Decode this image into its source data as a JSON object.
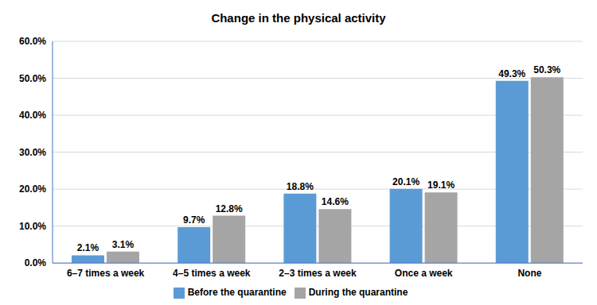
{
  "chart_data": {
    "type": "bar",
    "title": "Change in the physical activity",
    "categories": [
      "6–7 times a week",
      "4–5 times a week",
      "2–3 times a week",
      "Once a week",
      "None"
    ],
    "series": [
      {
        "name": "Before the quarantine",
        "color": "#5b9bd5",
        "values": [
          2.1,
          9.7,
          18.8,
          20.1,
          49.3
        ],
        "value_labels": [
          "2.1%",
          "9.7%",
          "18.8%",
          "20.1%",
          "49.3%"
        ]
      },
      {
        "name": "During the quarantine",
        "color": "#a5a5a5",
        "values": [
          3.1,
          12.8,
          14.6,
          19.1,
          50.3
        ],
        "value_labels": [
          "3.1%",
          "12.8%",
          "14.6%",
          "19.1%",
          "50.3%"
        ]
      }
    ],
    "ylim": [
      0,
      60
    ],
    "yticks": [
      {
        "value": 0,
        "label": "0.0%"
      },
      {
        "value": 10,
        "label": "10.0%"
      },
      {
        "value": 20,
        "label": "20.0%"
      },
      {
        "value": 30,
        "label": "30.0%"
      },
      {
        "value": 40,
        "label": "40.0%"
      },
      {
        "value": 50,
        "label": "50.0%"
      },
      {
        "value": 60,
        "label": "60.0%"
      }
    ],
    "grid": true,
    "legend": "bottom",
    "data_labels": true
  }
}
